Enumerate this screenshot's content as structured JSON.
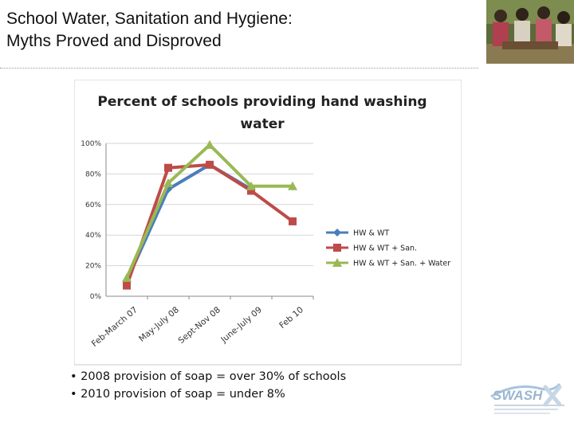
{
  "slide": {
    "title_line1": "School Water, Sanitation and Hygiene:",
    "title_line2": "Myths Proved and Disproved"
  },
  "bullets": [
    "• 2008 provision of soap = over 30% of schools",
    "• 2010 provision of soap = under 8%"
  ],
  "logo": {
    "text": "SWASH+"
  },
  "chart_data": {
    "type": "line",
    "title_lines": [
      "Percent of schools providing hand washing",
      "water"
    ],
    "categories": [
      "Feb-March 07",
      "May-July 08",
      "Sept-Nov 08",
      "June-July 09",
      "Feb 10"
    ],
    "y_ticks": [
      "0%",
      "20%",
      "40%",
      "60%",
      "80%",
      "100%"
    ],
    "ylim": [
      0,
      100
    ],
    "grid": true,
    "legend_position": "right",
    "series": [
      {
        "name": "HW & WT",
        "color": "#4a7ebb",
        "marker": "diamond",
        "values": [
          10,
          70,
          86,
          70,
          null
        ]
      },
      {
        "name": "HW & WT + San.",
        "color": "#be4b48",
        "marker": "square",
        "values": [
          7,
          84,
          86,
          69,
          49
        ]
      },
      {
        "name": "HW & WT + San. + Water",
        "color": "#98b954",
        "marker": "triangle",
        "values": [
          12,
          74,
          99,
          72,
          72
        ]
      }
    ]
  }
}
